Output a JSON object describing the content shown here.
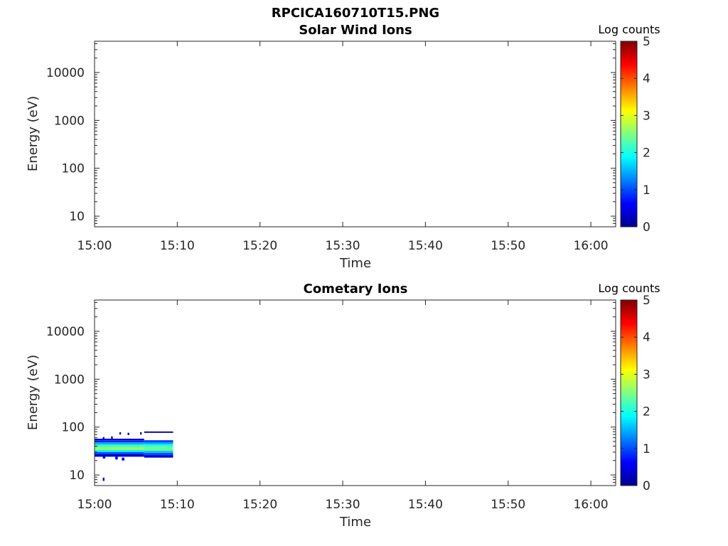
{
  "figure": {
    "title": "RPCICA160710T15.PNG"
  },
  "chart_data": [
    {
      "type": "heatmap",
      "title": "Solar Wind Ions",
      "xlabel": "Time",
      "ylabel": "Energy (eV)",
      "yscale": "log",
      "xlim": [
        "15:00",
        "16:03"
      ],
      "ylim": [
        6,
        45000
      ],
      "xticks": [
        "15:00",
        "15:10",
        "15:20",
        "15:30",
        "15:40",
        "15:50",
        "16:00"
      ],
      "yticks": [
        10,
        100,
        1000,
        10000
      ],
      "ytick_labels": [
        "10",
        "100",
        "1000",
        "10000"
      ],
      "grid": false,
      "colorbar": {
        "label": "Log counts",
        "range": [
          0,
          5
        ],
        "ticks": [
          "0",
          "1",
          "2",
          "3",
          "4",
          "5"
        ],
        "colormap": "jet"
      },
      "cells": []
    },
    {
      "type": "heatmap",
      "title": "Cometary Ions",
      "xlabel": "Time",
      "ylabel": "Energy (eV)",
      "yscale": "log",
      "xlim": [
        "15:00",
        "16:03"
      ],
      "ylim": [
        6,
        45000
      ],
      "xticks": [
        "15:00",
        "15:10",
        "15:20",
        "15:30",
        "15:40",
        "15:50",
        "16:00"
      ],
      "yticks": [
        10,
        100,
        1000,
        10000
      ],
      "ytick_labels": [
        "10",
        "100",
        "1000",
        "10000"
      ],
      "grid": false,
      "colorbar": {
        "label": "Log counts",
        "range": [
          0,
          5
        ],
        "ticks": [
          "0",
          "1",
          "2",
          "3",
          "4",
          "5"
        ],
        "colormap": "jet"
      },
      "cells": [
        {
          "t0": "15:00",
          "t1": "15:06",
          "e0": 24,
          "e1": 27,
          "v": 0.4
        },
        {
          "t0": "15:00",
          "t1": "15:06",
          "e0": 27,
          "e1": 30,
          "v": 1.0
        },
        {
          "t0": "15:00",
          "t1": "15:06",
          "e0": 30,
          "e1": 33,
          "v": 1.8
        },
        {
          "t0": "15:00",
          "t1": "15:06",
          "e0": 33,
          "e1": 38,
          "v": 2.6
        },
        {
          "t0": "15:00",
          "t1": "15:06",
          "e0": 38,
          "e1": 43,
          "v": 2.2
        },
        {
          "t0": "15:00",
          "t1": "15:06",
          "e0": 43,
          "e1": 48,
          "v": 1.5
        },
        {
          "t0": "15:00",
          "t1": "15:06",
          "e0": 48,
          "e1": 53,
          "v": 0.8
        },
        {
          "t0": "15:00",
          "t1": "15:06",
          "e0": 53,
          "e1": 57,
          "v": 0.3
        },
        {
          "t0": "15:06",
          "t1": "15:09.5",
          "e0": 23,
          "e1": 26,
          "v": 0.4
        },
        {
          "t0": "15:06",
          "t1": "15:09.5",
          "e0": 26,
          "e1": 29,
          "v": 1.0
        },
        {
          "t0": "15:06",
          "t1": "15:09.5",
          "e0": 29,
          "e1": 32,
          "v": 1.6
        },
        {
          "t0": "15:06",
          "t1": "15:09.5",
          "e0": 32,
          "e1": 39,
          "v": 2.4
        },
        {
          "t0": "15:06",
          "t1": "15:09.5",
          "e0": 39,
          "e1": 44,
          "v": 2.0
        },
        {
          "t0": "15:06",
          "t1": "15:09.5",
          "e0": 44,
          "e1": 49,
          "v": 1.4
        },
        {
          "t0": "15:06",
          "t1": "15:09.5",
          "e0": 49,
          "e1": 53,
          "v": 0.8
        },
        {
          "t0": "15:06",
          "t1": "15:09.5",
          "e0": 76,
          "e1": 81,
          "v": 0.2
        },
        {
          "t0": "15:01",
          "t1": "15:01.3",
          "e0": 22,
          "e1": 25,
          "v": 0.5
        },
        {
          "t0": "15:02.5",
          "t1": "15:02.8",
          "e0": 21,
          "e1": 24,
          "v": 0.5
        },
        {
          "t0": "15:03.3",
          "t1": "15:03.6",
          "e0": 20,
          "e1": 23,
          "v": 0.5
        },
        {
          "t0": "15:01",
          "t1": "15:01.2",
          "e0": 56,
          "e1": 62,
          "v": 0.4
        },
        {
          "t0": "15:02",
          "t1": "15:02.2",
          "e0": 57,
          "e1": 64,
          "v": 0.4
        },
        {
          "t0": "15:03",
          "t1": "15:03.2",
          "e0": 70,
          "e1": 78,
          "v": 0.3
        },
        {
          "t0": "15:04",
          "t1": "15:04.2",
          "e0": 68,
          "e1": 76,
          "v": 0.3
        },
        {
          "t0": "15:05.5",
          "t1": "15:05.7",
          "e0": 70,
          "e1": 78,
          "v": 0.3
        },
        {
          "t0": "15:01",
          "t1": "15:01.2",
          "e0": 7.5,
          "e1": 8.8,
          "v": 0.5
        }
      ]
    }
  ]
}
